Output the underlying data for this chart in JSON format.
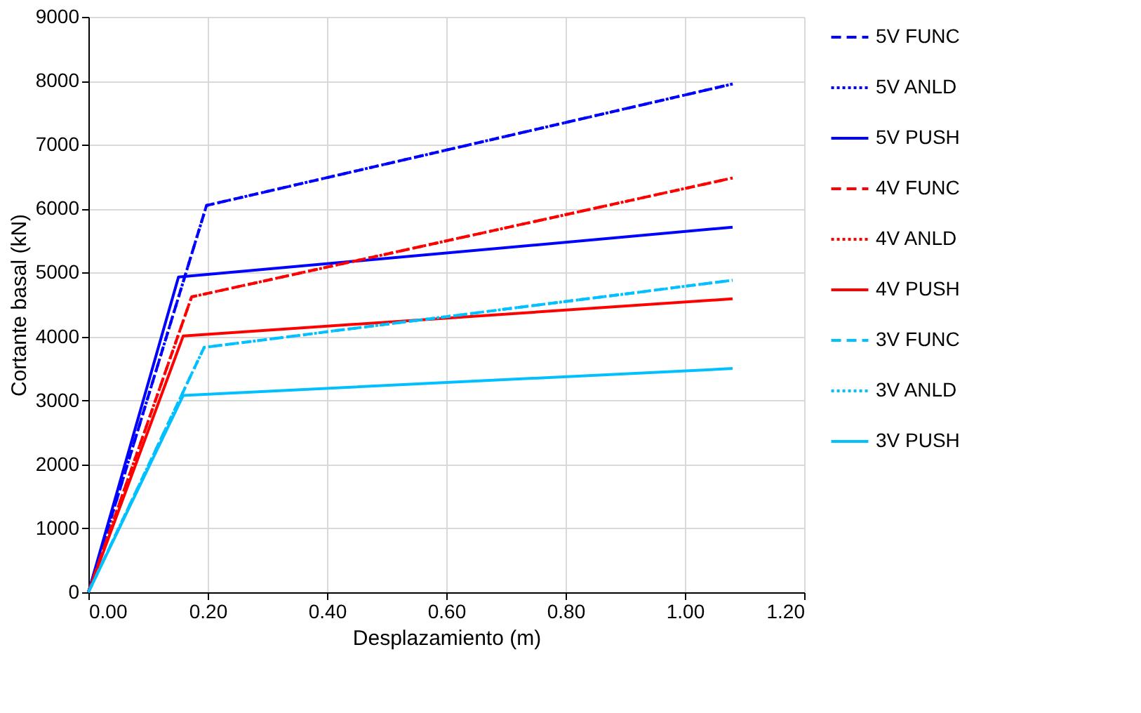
{
  "chart_data": {
    "type": "line",
    "xlabel": "Desplazamiento (m)",
    "ylabel": "Cortante basal (kN)",
    "xlim": [
      0,
      1.2
    ],
    "xticks": [
      {
        "value": 0,
        "label": "0.00"
      },
      {
        "value": 0.2,
        "label": "0.20"
      },
      {
        "value": 0.4,
        "label": "0.40"
      },
      {
        "value": 0.6,
        "label": "0.60"
      },
      {
        "value": 0.8,
        "label": "0.80"
      },
      {
        "value": 1.0,
        "label": "1.00"
      },
      {
        "value": 1.2,
        "label": "1.20"
      }
    ],
    "ylim": [
      0,
      9000
    ],
    "yticks": [
      0,
      1000,
      2000,
      3000,
      4000,
      5000,
      6000,
      7000,
      8000,
      9000
    ],
    "grid": true,
    "legend": "right",
    "series": [
      {
        "name": "5V FUNC",
        "color": "#0000ff",
        "line_style": "dashed",
        "x": [
          0,
          0.198,
          1.08
        ],
        "values": [
          0,
          6050,
          7950
        ]
      },
      {
        "name": "5V ANLD",
        "color": "#0000ff",
        "line_style": "dotted",
        "x": [
          0,
          0.198,
          1.08
        ],
        "values": [
          0,
          6050,
          7950
        ]
      },
      {
        "name": "5V PUSH",
        "color": "#0000ff",
        "line_style": "solid",
        "x": [
          0,
          0.151,
          1.08
        ],
        "values": [
          0,
          4930,
          5710
        ]
      },
      {
        "name": "4V FUNC",
        "color": "#ff0000",
        "line_style": "dashed",
        "x": [
          0,
          0.173,
          1.08
        ],
        "values": [
          0,
          4620,
          6480
        ]
      },
      {
        "name": "4V ANLD",
        "color": "#ff0000",
        "line_style": "dotted",
        "x": [
          0,
          0.173,
          1.08
        ],
        "values": [
          0,
          4620,
          6480
        ]
      },
      {
        "name": "4V PUSH",
        "color": "#ff0000",
        "line_style": "solid",
        "x": [
          0,
          0.159,
          1.08
        ],
        "values": [
          0,
          4010,
          4590
        ]
      },
      {
        "name": "3V FUNC",
        "color": "#00c0ff",
        "line_style": "dashed",
        "x": [
          0,
          0.194,
          1.08
        ],
        "values": [
          0,
          3830,
          4880
        ]
      },
      {
        "name": "3V ANLD",
        "color": "#00c0ff",
        "line_style": "dotted",
        "x": [
          0,
          0.194,
          1.08
        ],
        "values": [
          0,
          3830,
          4880
        ]
      },
      {
        "name": "3V PUSH",
        "color": "#00c0ff",
        "line_style": "solid",
        "x": [
          0,
          0.159,
          1.08
        ],
        "values": [
          0,
          3080,
          3500
        ]
      }
    ]
  }
}
